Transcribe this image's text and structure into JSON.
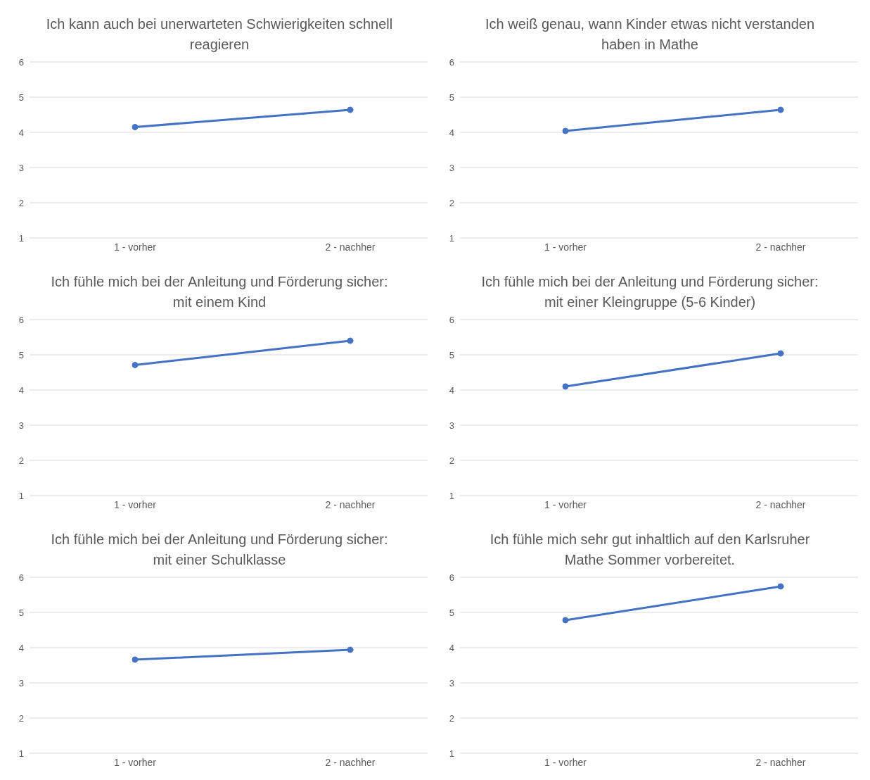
{
  "chart_data": [
    {
      "type": "line",
      "title": "Ich kann auch bei unerwarteten Schwierigkeiten schnell reagieren",
      "categories": [
        "1 - vorher",
        "2 - nachher"
      ],
      "series": [
        {
          "color": "#4472c4",
          "values": [
            4.15,
            4.64
          ]
        }
      ],
      "ylim": [
        1,
        6
      ],
      "yticks": [
        1,
        2,
        3,
        4,
        5,
        6
      ],
      "grid": "y",
      "marker": "circle",
      "line_style": "solid"
    },
    {
      "type": "line",
      "title": "Ich weiß genau, wann Kinder etwas nicht verstanden haben in Mathe",
      "categories": [
        "1 - vorher",
        "2 - nachher"
      ],
      "series": [
        {
          "color": "#4472c4",
          "values": [
            4.04,
            4.64
          ]
        }
      ],
      "ylim": [
        1,
        6
      ],
      "yticks": [
        1,
        2,
        3,
        4,
        5,
        6
      ],
      "grid": "y",
      "marker": "circle",
      "line_style": "solid"
    },
    {
      "type": "line",
      "title": "Ich fühle mich bei der Anleitung und Förderung sicher: mit einem Kind",
      "categories": [
        "1 - vorher",
        "2 - nachher"
      ],
      "series": [
        {
          "color": "#4472c4",
          "values": [
            4.71,
            5.4
          ]
        }
      ],
      "ylim": [
        1,
        6
      ],
      "yticks": [
        1,
        2,
        3,
        4,
        5,
        6
      ],
      "grid": "y",
      "marker": "circle",
      "line_style": "solid"
    },
    {
      "type": "line",
      "title": "Ich fühle mich bei der Anleitung und Förderung sicher: mit einer Kleingruppe (5-6 Kinder)",
      "categories": [
        "1 - vorher",
        "2 - nachher"
      ],
      "series": [
        {
          "color": "#4472c4",
          "values": [
            4.1,
            5.04
          ]
        }
      ],
      "ylim": [
        1,
        6
      ],
      "yticks": [
        1,
        2,
        3,
        4,
        5,
        6
      ],
      "grid": "y",
      "marker": "circle",
      "line_style": "solid"
    },
    {
      "type": "line",
      "title": "Ich fühle mich bei der Anleitung und Förderung sicher: mit einer Schulklasse",
      "categories": [
        "1 - vorher",
        "2 - nachher"
      ],
      "series": [
        {
          "color": "#4472c4",
          "values": [
            3.66,
            3.94
          ]
        }
      ],
      "ylim": [
        1,
        6
      ],
      "yticks": [
        1,
        2,
        3,
        4,
        5,
        6
      ],
      "grid": "y",
      "marker": "circle",
      "line_style": "solid"
    },
    {
      "type": "line",
      "title": "Ich fühle mich sehr gut inhaltlich auf den Karlsruher Mathe Sommer vorbereitet.",
      "categories": [
        "1 - vorher",
        "2 - nachher"
      ],
      "series": [
        {
          "color": "#4472c4",
          "values": [
            4.78,
            5.74
          ]
        }
      ],
      "ylim": [
        1,
        6
      ],
      "yticks": [
        1,
        2,
        3,
        4,
        5,
        6
      ],
      "grid": "y",
      "marker": "circle",
      "line_style": "solid"
    }
  ]
}
